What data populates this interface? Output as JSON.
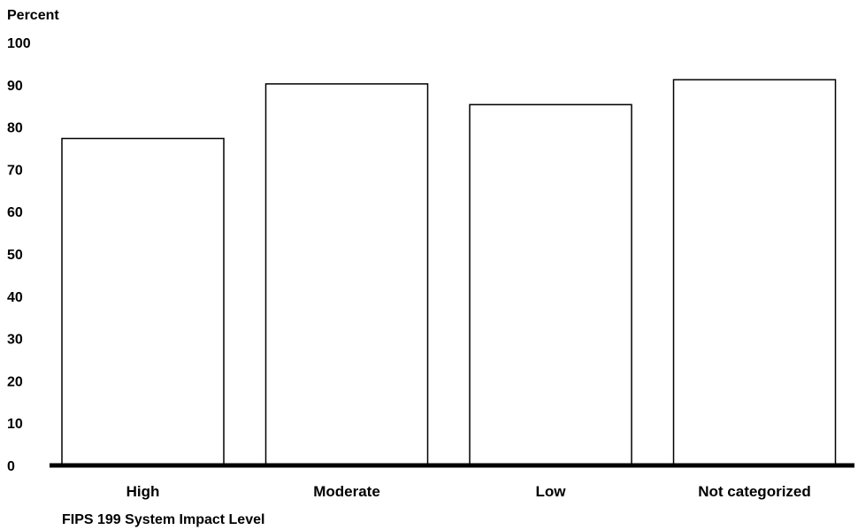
{
  "chart_data": {
    "type": "bar",
    "ylabel": "Percent",
    "xlabel": "FIPS 199 System Impact Level",
    "categories": [
      "High",
      "Moderate",
      "Low",
      "Not categorized"
    ],
    "values": [
      77.3,
      90.2,
      85.3,
      91.2
    ],
    "ylim": [
      0,
      100
    ],
    "yticks": [
      0,
      10,
      20,
      30,
      40,
      50,
      60,
      70,
      80,
      90,
      100
    ],
    "grid": false,
    "bar_fill": "#ffffff",
    "bar_stroke": "#000000"
  }
}
